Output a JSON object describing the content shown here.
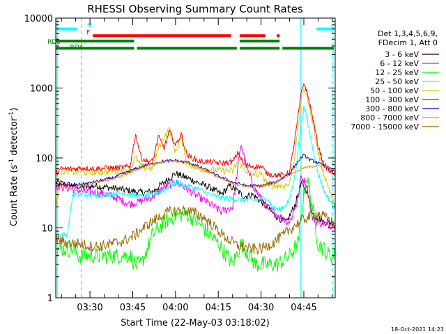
{
  "chart_data": {
    "type": "line",
    "title": "RHESSI Observing Summary Count Rates",
    "xlabel": "Start Time (22-May-03 03:18:02)",
    "ylabel_main": "Count Rate (s",
    "ylabel_sup1": "-1",
    "ylabel_mid": " detector",
    "ylabel_sup2": "-1",
    "ylabel_end": ")",
    "ylog": true,
    "ylim": [
      1,
      10000
    ],
    "xlim_minutes": [
      198,
      296
    ],
    "x_ticks": [
      {
        "minute": 210,
        "label": "03:30"
      },
      {
        "minute": 225,
        "label": "03:45"
      },
      {
        "minute": 240,
        "label": "04:00"
      },
      {
        "minute": 255,
        "label": "04:15"
      },
      {
        "minute": 270,
        "label": "04:30"
      },
      {
        "minute": 285,
        "label": "04:45"
      }
    ],
    "y_ticks": [
      {
        "value": 1,
        "label": "1"
      },
      {
        "value": 10,
        "label": "10"
      },
      {
        "value": 100,
        "label": "100"
      },
      {
        "value": 1000,
        "label": "1000"
      },
      {
        "value": 10000,
        "label": "10000"
      }
    ],
    "legend_header": [
      "Det 1,3,4,5,6,9,",
      "FDecim 1, Att 0"
    ],
    "legend_position": "right",
    "series": [
      {
        "name": "3 - 6 keV",
        "color": "#000000",
        "points": [
          [
            198,
            45
          ],
          [
            204,
            40
          ],
          [
            208,
            38
          ],
          [
            212,
            40
          ],
          [
            216,
            38
          ],
          [
            220,
            36
          ],
          [
            224,
            34
          ],
          [
            228,
            32
          ],
          [
            232,
            33
          ],
          [
            236,
            45
          ],
          [
            240,
            60
          ],
          [
            244,
            52
          ],
          [
            248,
            44
          ],
          [
            252,
            38
          ],
          [
            256,
            30
          ],
          [
            259,
            40
          ],
          [
            262,
            33
          ],
          [
            264,
            28
          ],
          [
            267,
            30
          ],
          [
            270,
            24
          ],
          [
            273,
            18
          ],
          [
            276,
            14
          ],
          [
            279,
            12
          ],
          [
            282,
            22
          ],
          [
            284,
            42
          ],
          [
            286,
            35
          ],
          [
            288,
            16
          ],
          [
            290,
            14
          ],
          [
            292,
            12
          ],
          [
            294,
            12
          ],
          [
            296,
            12
          ]
        ]
      },
      {
        "name": "6 - 12 keV",
        "color": "#ff00ff",
        "points": [
          [
            198,
            40
          ],
          [
            204,
            36
          ],
          [
            208,
            33
          ],
          [
            212,
            32
          ],
          [
            216,
            30
          ],
          [
            220,
            26
          ],
          [
            224,
            22
          ],
          [
            228,
            24
          ],
          [
            232,
            28
          ],
          [
            236,
            38
          ],
          [
            240,
            45
          ],
          [
            244,
            36
          ],
          [
            248,
            28
          ],
          [
            252,
            22
          ],
          [
            256,
            17
          ],
          [
            260,
            20
          ],
          [
            263,
            160
          ],
          [
            265,
            70
          ],
          [
            268,
            35
          ],
          [
            272,
            20
          ],
          [
            276,
            15
          ],
          [
            280,
            12
          ],
          [
            283,
            25
          ],
          [
            284,
            55
          ],
          [
            286,
            42
          ],
          [
            288,
            14
          ],
          [
            290,
            12
          ],
          [
            294,
            11
          ],
          [
            296,
            11
          ]
        ]
      },
      {
        "name": "12 - 25 keV",
        "color": "#00ff00",
        "points": [
          [
            198,
            5
          ],
          [
            204,
            5
          ],
          [
            206,
            4
          ],
          [
            210,
            4
          ],
          [
            215,
            4
          ],
          [
            220,
            4
          ],
          [
            224,
            4
          ],
          [
            226,
            3
          ],
          [
            228,
            3
          ],
          [
            232,
            8
          ],
          [
            236,
            12
          ],
          [
            240,
            15
          ],
          [
            244,
            16
          ],
          [
            248,
            12
          ],
          [
            252,
            8
          ],
          [
            255,
            6
          ],
          [
            258,
            4
          ],
          [
            260,
            3
          ],
          [
            263,
            6
          ],
          [
            266,
            4
          ],
          [
            268,
            3
          ],
          [
            272,
            3
          ],
          [
            276,
            3
          ],
          [
            280,
            4
          ],
          [
            283,
            6
          ],
          [
            285,
            30
          ],
          [
            286,
            55
          ],
          [
            288,
            20
          ],
          [
            290,
            6
          ],
          [
            292,
            5
          ],
          [
            294,
            4
          ],
          [
            296,
            4
          ]
        ]
      },
      {
        "name": "25 - 50 keV",
        "color": "#00ffff",
        "points": [
          [
            198,
            8
          ],
          [
            202,
            8
          ],
          [
            204,
            30
          ],
          [
            208,
            30
          ],
          [
            212,
            29
          ],
          [
            216,
            30
          ],
          [
            220,
            32
          ],
          [
            224,
            30
          ],
          [
            228,
            28
          ],
          [
            232,
            30
          ],
          [
            236,
            35
          ],
          [
            240,
            45
          ],
          [
            244,
            40
          ],
          [
            248,
            36
          ],
          [
            252,
            30
          ],
          [
            256,
            27
          ],
          [
            260,
            26
          ],
          [
            264,
            25
          ],
          [
            268,
            25
          ],
          [
            272,
            27
          ],
          [
            274,
            20
          ],
          [
            276,
            18
          ],
          [
            278,
            20
          ],
          [
            280,
            25
          ],
          [
            282,
            60
          ],
          [
            284,
            300
          ],
          [
            285,
            520
          ],
          [
            286,
            380
          ],
          [
            288,
            150
          ],
          [
            290,
            60
          ],
          [
            292,
            35
          ],
          [
            294,
            25
          ],
          [
            296,
            20
          ]
        ]
      },
      {
        "name": "50 - 100 keV",
        "color": "#cccc00",
        "points": [
          [
            198,
            18
          ],
          [
            200,
            65
          ],
          [
            204,
            63
          ],
          [
            208,
            62
          ],
          [
            212,
            62
          ],
          [
            216,
            64
          ],
          [
            220,
            65
          ],
          [
            224,
            68
          ],
          [
            226,
            100
          ],
          [
            228,
            75
          ],
          [
            232,
            70
          ],
          [
            234,
            140
          ],
          [
            236,
            200
          ],
          [
            238,
            260
          ],
          [
            240,
            120
          ],
          [
            242,
            200
          ],
          [
            244,
            90
          ],
          [
            246,
            75
          ],
          [
            248,
            70
          ],
          [
            252,
            68
          ],
          [
            256,
            66
          ],
          [
            260,
            65
          ],
          [
            262,
            90
          ],
          [
            264,
            70
          ],
          [
            266,
            60
          ],
          [
            268,
            58
          ],
          [
            270,
            58
          ],
          [
            272,
            45
          ],
          [
            274,
            40
          ],
          [
            276,
            40
          ],
          [
            278,
            40
          ],
          [
            280,
            42
          ],
          [
            282,
            120
          ],
          [
            284,
            600
          ],
          [
            285,
            1000
          ],
          [
            286,
            800
          ],
          [
            288,
            350
          ],
          [
            290,
            120
          ],
          [
            292,
            60
          ],
          [
            294,
            35
          ],
          [
            296,
            20
          ]
        ]
      },
      {
        "name": "100 - 300 keV",
        "color": "#ff0000",
        "points": [
          [
            198,
            60
          ],
          [
            200,
            70
          ],
          [
            204,
            70
          ],
          [
            208,
            72
          ],
          [
            212,
            70
          ],
          [
            216,
            72
          ],
          [
            220,
            72
          ],
          [
            224,
            75
          ],
          [
            226,
            220
          ],
          [
            228,
            100
          ],
          [
            230,
            90
          ],
          [
            232,
            90
          ],
          [
            234,
            200
          ],
          [
            236,
            140
          ],
          [
            238,
            240
          ],
          [
            240,
            150
          ],
          [
            242,
            220
          ],
          [
            244,
            110
          ],
          [
            246,
            100
          ],
          [
            248,
            90
          ],
          [
            252,
            88
          ],
          [
            256,
            84
          ],
          [
            260,
            88
          ],
          [
            262,
            120
          ],
          [
            264,
            80
          ],
          [
            268,
            75
          ],
          [
            270,
            76
          ],
          [
            272,
            60
          ],
          [
            274,
            58
          ],
          [
            276,
            56
          ],
          [
            278,
            58
          ],
          [
            280,
            62
          ],
          [
            282,
            200
          ],
          [
            284,
            800
          ],
          [
            285,
            1200
          ],
          [
            286,
            900
          ],
          [
            288,
            400
          ],
          [
            290,
            150
          ],
          [
            292,
            80
          ],
          [
            294,
            65
          ],
          [
            296,
            60
          ]
        ]
      },
      {
        "name": "300 - 800 keV",
        "color": "#0000cc",
        "points": [
          [
            198,
            42
          ],
          [
            203,
            40
          ],
          [
            210,
            44
          ],
          [
            218,
            52
          ],
          [
            224,
            65
          ],
          [
            230,
            80
          ],
          [
            236,
            90
          ],
          [
            240,
            92
          ],
          [
            245,
            85
          ],
          [
            250,
            70
          ],
          [
            255,
            55
          ],
          [
            260,
            45
          ],
          [
            265,
            40
          ],
          [
            270,
            40
          ],
          [
            275,
            45
          ],
          [
            280,
            60
          ],
          [
            283,
            90
          ],
          [
            285,
            110
          ],
          [
            287,
            95
          ],
          [
            290,
            85
          ],
          [
            293,
            75
          ],
          [
            296,
            65
          ]
        ]
      },
      {
        "name": "800 - 7000 keV",
        "color": "#ff8800",
        "points": [
          [
            198,
            40
          ],
          [
            203,
            38
          ],
          [
            210,
            42
          ],
          [
            218,
            50
          ],
          [
            224,
            62
          ],
          [
            230,
            78
          ],
          [
            236,
            88
          ],
          [
            240,
            90
          ],
          [
            245,
            82
          ],
          [
            250,
            68
          ],
          [
            255,
            53
          ],
          [
            260,
            43
          ],
          [
            265,
            39
          ],
          [
            270,
            39
          ],
          [
            275,
            44
          ],
          [
            280,
            58
          ],
          [
            285,
            72
          ],
          [
            290,
            78
          ],
          [
            293,
            74
          ],
          [
            296,
            65
          ]
        ]
      },
      {
        "name": "7000 - 15000 keV",
        "color": "#996600",
        "points": [
          [
            198,
            7
          ],
          [
            202,
            6
          ],
          [
            206,
            6
          ],
          [
            210,
            5.5
          ],
          [
            214,
            5.5
          ],
          [
            218,
            6
          ],
          [
            222,
            6.5
          ],
          [
            226,
            8
          ],
          [
            230,
            11
          ],
          [
            234,
            14
          ],
          [
            238,
            17
          ],
          [
            242,
            18
          ],
          [
            246,
            17
          ],
          [
            250,
            14
          ],
          [
            254,
            10
          ],
          [
            258,
            7
          ],
          [
            262,
            5.5
          ],
          [
            266,
            5
          ],
          [
            270,
            5
          ],
          [
            274,
            6
          ],
          [
            278,
            8
          ],
          [
            282,
            11
          ],
          [
            286,
            14
          ],
          [
            290,
            16
          ],
          [
            294,
            13
          ],
          [
            296,
            11
          ]
        ]
      }
    ],
    "state_bars": [
      {
        "label": "N",
        "color": "#00ffff",
        "y_value": 7000,
        "segments": [
          [
            198,
            206
          ],
          [
            289,
            296
          ]
        ]
      },
      {
        "label": "F",
        "color": "#ff0000",
        "y_value": 5600,
        "segments": [
          [
            211,
            260
          ],
          [
            262,
            272
          ],
          [
            275,
            277
          ]
        ]
      },
      {
        "label": "RD0",
        "color": "#008000",
        "y_value": 4700,
        "segments": [
          [
            198,
            226
          ],
          [
            262,
            277
          ]
        ]
      },
      {
        "label": "RD4",
        "color": "#008000",
        "y_value": 3700,
        "segments": [
          [
            198,
            226
          ],
          [
            226,
            262
          ],
          [
            262,
            277
          ],
          [
            277,
            296
          ]
        ]
      }
    ],
    "vertical_markers": [
      {
        "minute": 198.5,
        "style": "solid",
        "color": "#00ffff"
      },
      {
        "minute": 207,
        "style": "dashed",
        "color": "#00ffff"
      },
      {
        "minute": 284,
        "style": "solid",
        "color": "#00ffff"
      },
      {
        "minute": 295,
        "style": "dashed",
        "color": "#00ffff"
      }
    ],
    "timestamp": "18-Oct-2021 14:23"
  }
}
